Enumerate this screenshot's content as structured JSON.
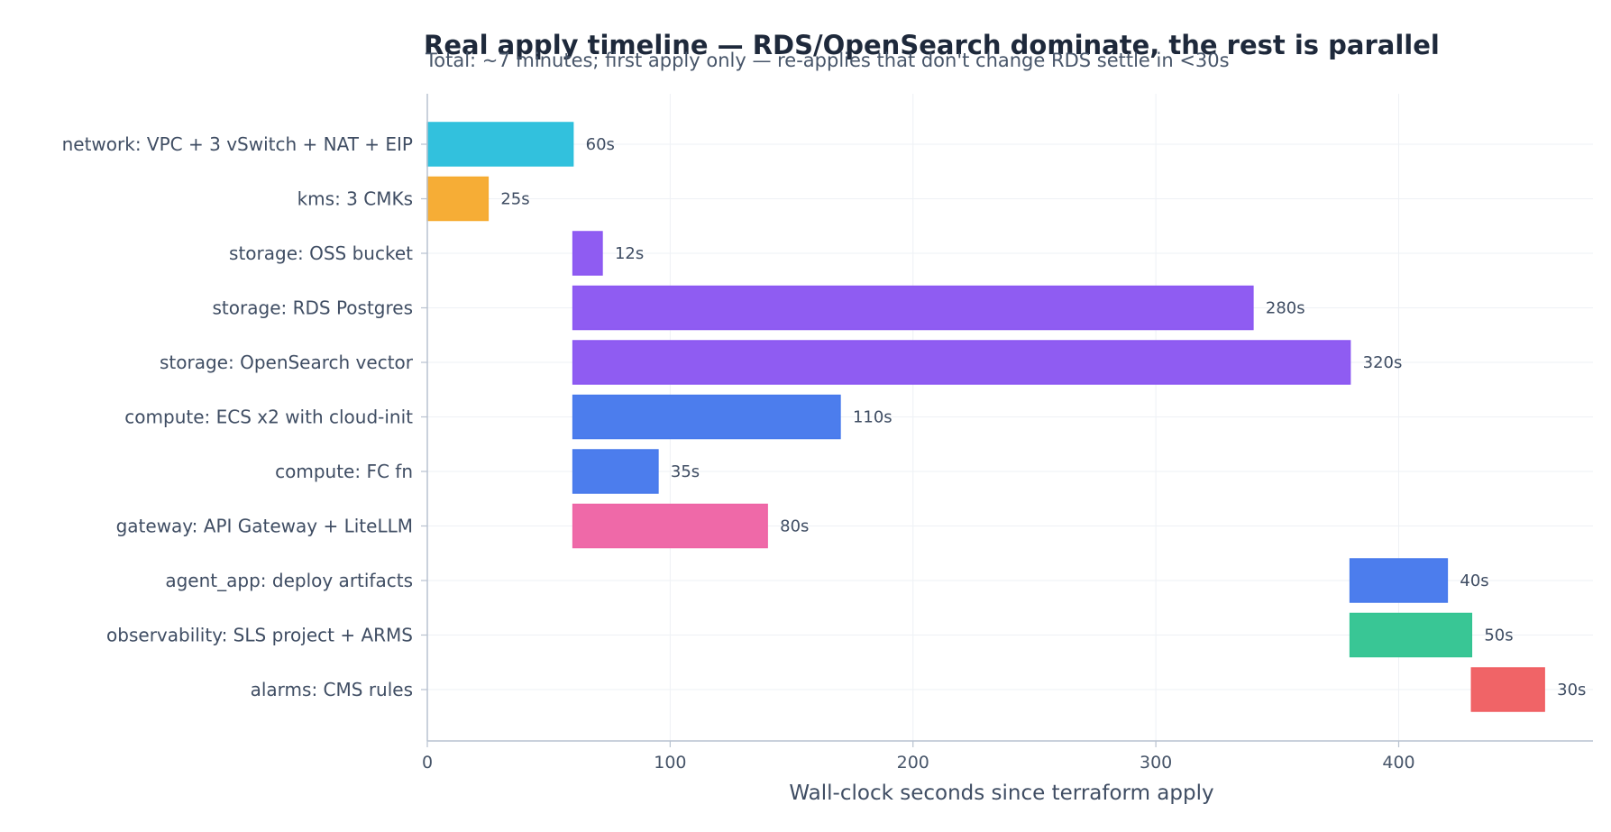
{
  "chart_data": {
    "type": "bar",
    "orientation": "horizontal",
    "title": "Real apply timeline — RDS/OpenSearch dominate, the rest is parallel",
    "subtitle": "Total: ~7 minutes; first apply only — re-applies that don't change RDS settle in <30s",
    "xlabel": "Wall-clock seconds since terraform apply",
    "ylabel": "",
    "xlim": [
      0,
      480
    ],
    "xticks": [
      0,
      100,
      200,
      300,
      400
    ],
    "grid": true,
    "colors": {
      "network": "#2bbfdc",
      "kms": "#f6aa2f",
      "storage": "#8b57f2",
      "compute": "#4679ec",
      "gateway": "#ee64a5",
      "agent_app": "#4679ec",
      "observability": "#33c492",
      "alarms": "#f05f62"
    },
    "tasks": [
      {
        "label": "network: VPC + 3 vSwitch + NAT + EIP",
        "group": "network",
        "start": 0,
        "duration": 60,
        "value_label": "60s"
      },
      {
        "label": "kms: 3 CMKs",
        "group": "kms",
        "start": 0,
        "duration": 25,
        "value_label": "25s"
      },
      {
        "label": "storage: OSS bucket",
        "group": "storage",
        "start": 60,
        "duration": 12,
        "value_label": "12s"
      },
      {
        "label": "storage: RDS Postgres",
        "group": "storage",
        "start": 60,
        "duration": 280,
        "value_label": "280s"
      },
      {
        "label": "storage: OpenSearch vector",
        "group": "storage",
        "start": 60,
        "duration": 320,
        "value_label": "320s"
      },
      {
        "label": "compute: ECS x2 with cloud-init",
        "group": "compute",
        "start": 60,
        "duration": 110,
        "value_label": "110s"
      },
      {
        "label": "compute: FC fn",
        "group": "compute",
        "start": 60,
        "duration": 35,
        "value_label": "35s"
      },
      {
        "label": "gateway: API Gateway + LiteLLM",
        "group": "gateway",
        "start": 60,
        "duration": 80,
        "value_label": "80s"
      },
      {
        "label": "agent_app: deploy artifacts",
        "group": "agent_app",
        "start": 380,
        "duration": 40,
        "value_label": "40s"
      },
      {
        "label": "observability: SLS project + ARMS",
        "group": "observability",
        "start": 380,
        "duration": 50,
        "value_label": "50s"
      },
      {
        "label": "alarms: CMS rules",
        "group": "alarms",
        "start": 430,
        "duration": 30,
        "value_label": "30s"
      }
    ]
  }
}
